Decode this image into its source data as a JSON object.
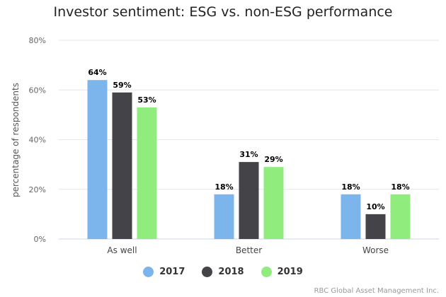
{
  "chart_data": {
    "type": "bar",
    "title": "Investor sentiment: ESG vs. non-ESG performance",
    "xlabel": "",
    "ylabel": "percentage of respondents",
    "categories": [
      "As well",
      "Better",
      "Worse"
    ],
    "series": [
      {
        "name": "2017",
        "color": "#7cb5ec",
        "values": [
          64,
          18,
          18
        ],
        "labels": [
          "64%",
          "18%",
          "18%"
        ]
      },
      {
        "name": "2018",
        "color": "#434348",
        "values": [
          59,
          31,
          10
        ],
        "labels": [
          "59%",
          "31%",
          "10%"
        ]
      },
      {
        "name": "2019",
        "color": "#90ed7d",
        "values": [
          53,
          29,
          18
        ],
        "labels": [
          "53%",
          "29%",
          "18%"
        ]
      }
    ],
    "ylim": [
      0,
      80
    ],
    "yticks": [
      0,
      20,
      40,
      60,
      80
    ],
    "ytick_labels": [
      "0%",
      "20%",
      "40%",
      "60%",
      "80%"
    ],
    "grid": true,
    "legend_position": "bottom-center"
  },
  "credit": "RBC Global Asset Management Inc."
}
